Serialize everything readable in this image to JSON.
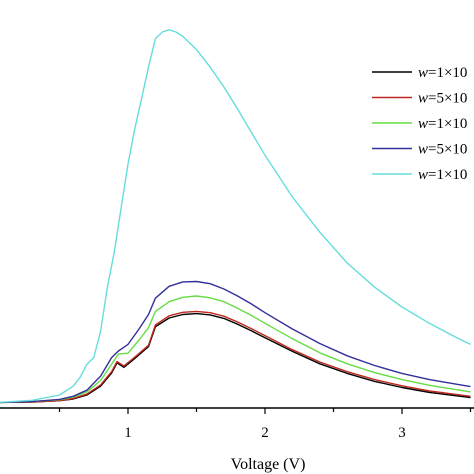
{
  "chart_data": {
    "type": "line",
    "title": "",
    "xlabel": "Voltage (V)",
    "ylabel": "",
    "xlim": [
      0.05,
      3.5
    ],
    "ylim": [
      0.0,
      1.0
    ],
    "x_ticks": [
      1,
      2,
      3
    ],
    "grid": false,
    "legend_position": "right",
    "series": [
      {
        "name_prefix": "w",
        "name": "=1×10",
        "color": "#000000",
        "points": [
          [
            0.05,
            0.058
          ],
          [
            0.3,
            0.059
          ],
          [
            0.5,
            0.062
          ],
          [
            0.6,
            0.066
          ],
          [
            0.7,
            0.075
          ],
          [
            0.8,
            0.095
          ],
          [
            0.88,
            0.125
          ],
          [
            0.92,
            0.148
          ],
          [
            0.97,
            0.138
          ],
          [
            1.05,
            0.158
          ],
          [
            1.15,
            0.185
          ],
          [
            1.2,
            0.23
          ],
          [
            1.3,
            0.25
          ],
          [
            1.4,
            0.258
          ],
          [
            1.5,
            0.26
          ],
          [
            1.6,
            0.257
          ],
          [
            1.7,
            0.249
          ],
          [
            1.8,
            0.236
          ],
          [
            1.9,
            0.221
          ],
          [
            2.0,
            0.205
          ],
          [
            2.2,
            0.174
          ],
          [
            2.4,
            0.146
          ],
          [
            2.6,
            0.124
          ],
          [
            2.8,
            0.106
          ],
          [
            3.0,
            0.092
          ],
          [
            3.2,
            0.081
          ],
          [
            3.5,
            0.069
          ]
        ]
      },
      {
        "name_prefix": "w",
        "name": "=5×10",
        "color": "#c0281e",
        "points": [
          [
            0.05,
            0.058
          ],
          [
            0.3,
            0.059
          ],
          [
            0.5,
            0.062
          ],
          [
            0.6,
            0.067
          ],
          [
            0.7,
            0.077
          ],
          [
            0.8,
            0.098
          ],
          [
            0.88,
            0.128
          ],
          [
            0.92,
            0.151
          ],
          [
            0.97,
            0.141
          ],
          [
            1.05,
            0.161
          ],
          [
            1.15,
            0.188
          ],
          [
            1.2,
            0.234
          ],
          [
            1.3,
            0.255
          ],
          [
            1.4,
            0.263
          ],
          [
            1.5,
            0.265
          ],
          [
            1.6,
            0.262
          ],
          [
            1.7,
            0.254
          ],
          [
            1.8,
            0.241
          ],
          [
            1.9,
            0.226
          ],
          [
            2.0,
            0.21
          ],
          [
            2.2,
            0.178
          ],
          [
            2.4,
            0.15
          ],
          [
            2.6,
            0.128
          ],
          [
            2.8,
            0.11
          ],
          [
            3.0,
            0.096
          ],
          [
            3.2,
            0.084
          ],
          [
            3.5,
            0.072
          ]
        ]
      },
      {
        "name_prefix": "w",
        "name": "=1×10",
        "color": "#66dd44",
        "points": [
          [
            0.05,
            0.058
          ],
          [
            0.3,
            0.06
          ],
          [
            0.5,
            0.064
          ],
          [
            0.6,
            0.07
          ],
          [
            0.7,
            0.082
          ],
          [
            0.8,
            0.108
          ],
          [
            0.88,
            0.145
          ],
          [
            0.93,
            0.168
          ],
          [
            1.0,
            0.17
          ],
          [
            1.08,
            0.2
          ],
          [
            1.15,
            0.228
          ],
          [
            1.2,
            0.265
          ],
          [
            1.3,
            0.287
          ],
          [
            1.4,
            0.297
          ],
          [
            1.5,
            0.3
          ],
          [
            1.6,
            0.296
          ],
          [
            1.7,
            0.287
          ],
          [
            1.8,
            0.272
          ],
          [
            1.9,
            0.256
          ],
          [
            2.0,
            0.238
          ],
          [
            2.2,
            0.203
          ],
          [
            2.4,
            0.171
          ],
          [
            2.6,
            0.146
          ],
          [
            2.8,
            0.126
          ],
          [
            3.0,
            0.11
          ],
          [
            3.2,
            0.097
          ],
          [
            3.5,
            0.082
          ]
        ]
      },
      {
        "name_prefix": "w",
        "name": "=5×10",
        "color": "#33309a",
        "points": [
          [
            0.05,
            0.058
          ],
          [
            0.3,
            0.06
          ],
          [
            0.5,
            0.065
          ],
          [
            0.6,
            0.072
          ],
          [
            0.7,
            0.086
          ],
          [
            0.8,
            0.118
          ],
          [
            0.88,
            0.16
          ],
          [
            0.93,
            0.175
          ],
          [
            1.0,
            0.19
          ],
          [
            1.08,
            0.225
          ],
          [
            1.15,
            0.258
          ],
          [
            1.2,
            0.295
          ],
          [
            1.3,
            0.322
          ],
          [
            1.4,
            0.332
          ],
          [
            1.5,
            0.333
          ],
          [
            1.6,
            0.328
          ],
          [
            1.7,
            0.316
          ],
          [
            1.8,
            0.3
          ],
          [
            1.9,
            0.282
          ],
          [
            2.0,
            0.262
          ],
          [
            2.2,
            0.225
          ],
          [
            2.4,
            0.192
          ],
          [
            2.6,
            0.164
          ],
          [
            2.8,
            0.142
          ],
          [
            3.0,
            0.124
          ],
          [
            3.2,
            0.11
          ],
          [
            3.5,
            0.094
          ]
        ]
      },
      {
        "name_prefix": "w",
        "name": "=1×10",
        "color": "#66dddd",
        "points": [
          [
            0.05,
            0.058
          ],
          [
            0.3,
            0.063
          ],
          [
            0.5,
            0.075
          ],
          [
            0.6,
            0.095
          ],
          [
            0.65,
            0.115
          ],
          [
            0.7,
            0.145
          ],
          [
            0.75,
            0.16
          ],
          [
            0.8,
            0.22
          ],
          [
            0.85,
            0.32
          ],
          [
            0.9,
            0.4
          ],
          [
            0.95,
            0.5
          ],
          [
            1.0,
            0.6
          ],
          [
            1.05,
            0.68
          ],
          [
            1.1,
            0.75
          ],
          [
            1.15,
            0.82
          ],
          [
            1.2,
            0.885
          ],
          [
            1.25,
            0.9
          ],
          [
            1.3,
            0.905
          ],
          [
            1.35,
            0.9
          ],
          [
            1.4,
            0.89
          ],
          [
            1.5,
            0.86
          ],
          [
            1.6,
            0.82
          ],
          [
            1.7,
            0.775
          ],
          [
            1.8,
            0.725
          ],
          [
            1.9,
            0.672
          ],
          [
            2.0,
            0.62
          ],
          [
            2.2,
            0.525
          ],
          [
            2.4,
            0.445
          ],
          [
            2.6,
            0.375
          ],
          [
            2.8,
            0.32
          ],
          [
            3.0,
            0.275
          ],
          [
            3.2,
            0.238
          ],
          [
            3.4,
            0.205
          ],
          [
            3.5,
            0.19
          ]
        ]
      }
    ]
  }
}
